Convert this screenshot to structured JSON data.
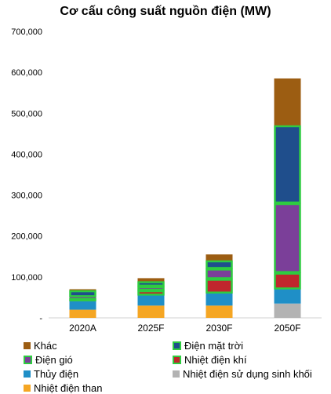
{
  "chart_data": {
    "type": "bar",
    "stacked": true,
    "title": "Cơ cấu công suất nguồn điện (MW)",
    "categories": [
      "2020A",
      "2025F",
      "2030F",
      "2050F"
    ],
    "y_ticks": [
      "-",
      "100,000",
      "200,000",
      "300,000",
      "400,000",
      "500,000",
      "600,000",
      "700,000"
    ],
    "ylim": [
      0,
      700000
    ],
    "series": [
      {
        "name": "Nhiệt điện than",
        "color": "#f5a623",
        "outlined": false,
        "values": [
          20000,
          30000,
          30000,
          0
        ]
      },
      {
        "name": "Nhiệt điện sử dụng sinh khối",
        "color": "#b3b3b3",
        "outlined": false,
        "values": [
          0,
          0,
          0,
          35000
        ]
      },
      {
        "name": "Thủy điện",
        "color": "#1f8fc7",
        "outlined": false,
        "values": [
          21000,
          25000,
          30000,
          35000
        ]
      },
      {
        "name": "Nhiệt điện khí",
        "color": "#c0262d",
        "outlined": true,
        "values": [
          7000,
          12000,
          35000,
          40000
        ]
      },
      {
        "name": "Điện gió",
        "color": "#7b3f99",
        "outlined": true,
        "values": [
          3000,
          10000,
          25000,
          170000
        ]
      },
      {
        "name": "Điện mặt trời",
        "color": "#1f4e8c",
        "outlined": true,
        "values": [
          16000,
          12000,
          20000,
          190000
        ]
      },
      {
        "name": "Khác",
        "color": "#9c5d12",
        "outlined": false,
        "values": [
          3000,
          8000,
          15000,
          115000
        ]
      }
    ],
    "legend_order": [
      "Khác",
      "Điện mặt trời",
      "Điện gió",
      "Nhiệt điện khí",
      "Thủy điện",
      "Nhiệt điện sử dụng sinh khối",
      "Nhiệt điện than"
    ],
    "grid": false,
    "legend_position": "bottom",
    "outline_color": "#2ecc40"
  }
}
